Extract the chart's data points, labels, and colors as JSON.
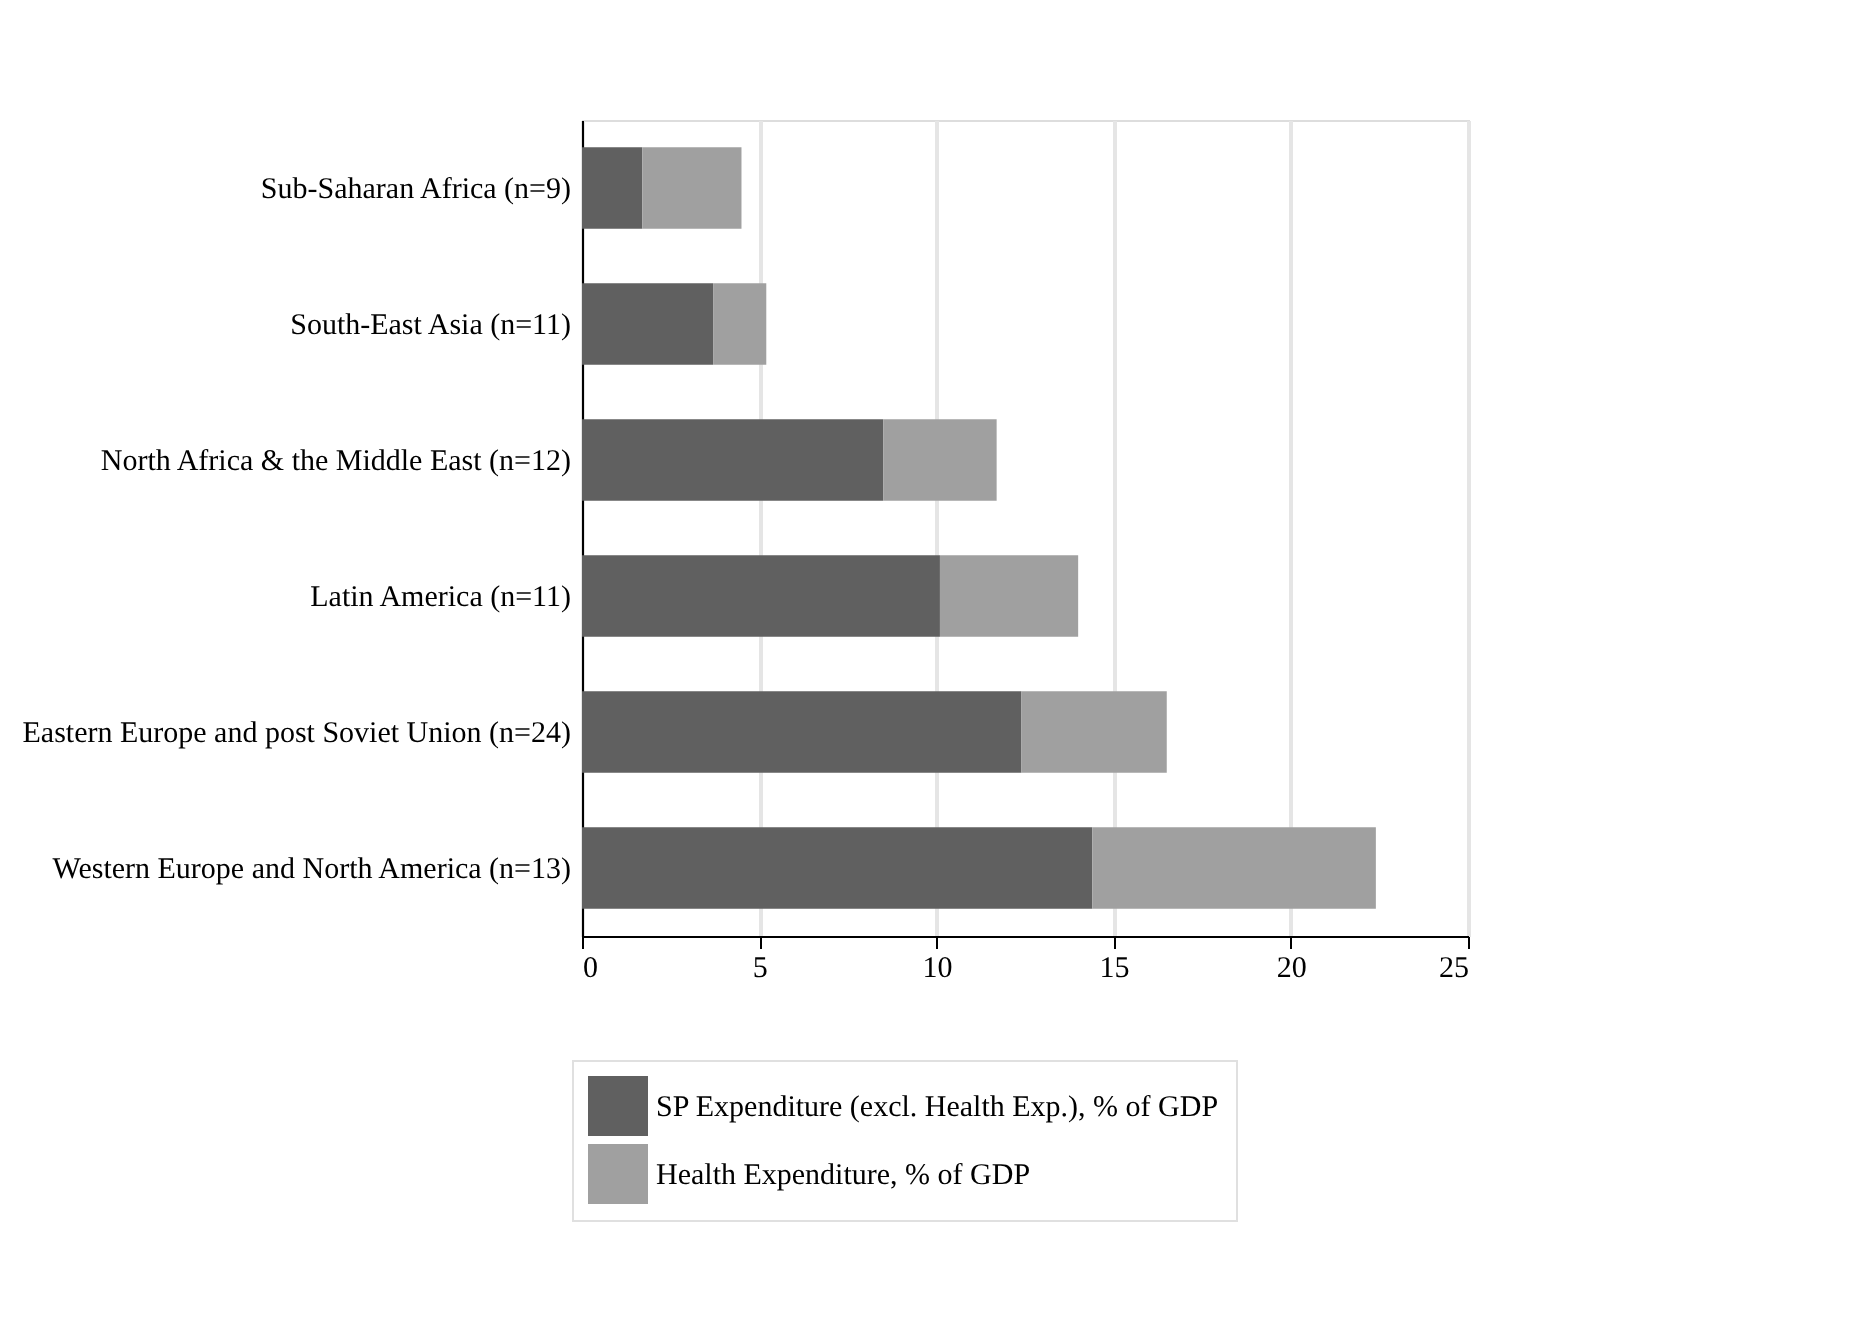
{
  "chart_data": {
    "type": "bar",
    "orientation": "horizontal",
    "stacked": true,
    "categories": [
      "Sub-Saharan Africa (n=9)",
      "South-East Asia (n=11)",
      "North Africa & the Middle East (n=12)",
      "Latin America (n=11)",
      "Eastern Europe and post Soviet Union (n=24)",
      "Western Europe and North America (n=13)"
    ],
    "series": [
      {
        "name": "SP Expenditure (excl. Health Exp.), % of GDP",
        "color": "#606060",
        "values": [
          1.7,
          3.7,
          8.5,
          10.1,
          12.4,
          14.4
        ]
      },
      {
        "name": "Health Expenditure, % of GDP",
        "color": "#a0a0a0",
        "values": [
          2.8,
          1.5,
          3.2,
          3.9,
          4.1,
          8.0
        ]
      }
    ],
    "xlim": [
      0,
      25
    ],
    "xticks": [
      0,
      5,
      10,
      15,
      20,
      25
    ],
    "grid": "x",
    "legend": "bottom"
  }
}
